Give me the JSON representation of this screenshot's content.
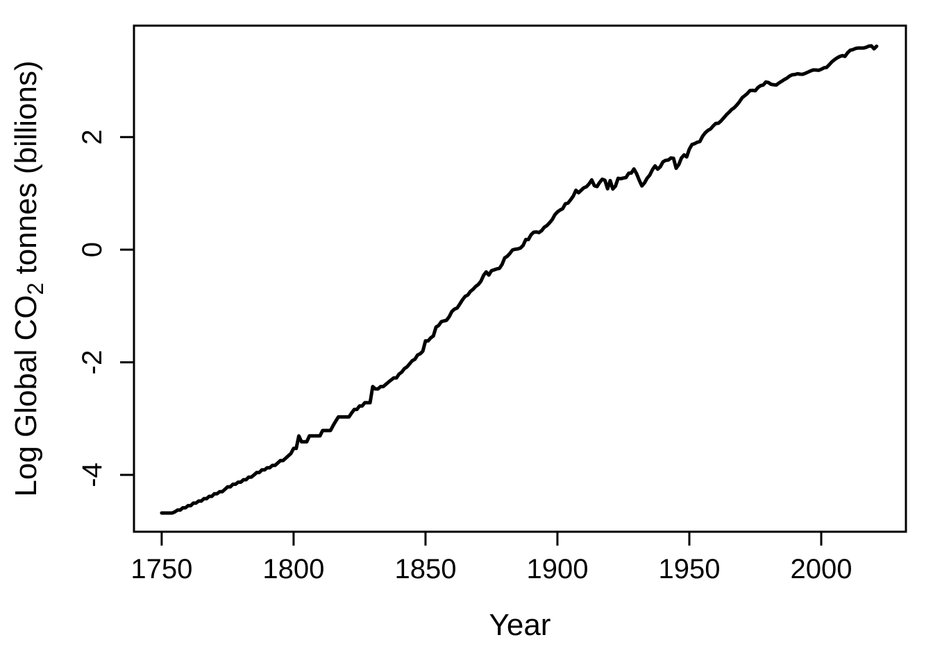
{
  "chart_data": {
    "type": "line",
    "xlabel": "Year",
    "ylabel": {
      "pre": "Log Global CO",
      "sub": "2",
      "post": " tonnes (billions)"
    },
    "x_ticks": [
      1750,
      1800,
      1850,
      1900,
      1950,
      2000
    ],
    "y_ticks": [
      -4,
      -2,
      0,
      2
    ],
    "xlim": [
      1739.5,
      2032.1
    ],
    "ylim": [
      -5.01,
      3.98
    ],
    "grid": false,
    "legend": "none",
    "line_color": "#000000",
    "axis_color": "#000000",
    "background": "#ffffff",
    "series": [
      {
        "x_start_year": 1750,
        "x_step": 1,
        "y_transform": "ln",
        "values_gtco2": [
          0.0093,
          0.0093,
          0.0093,
          0.0093,
          0.0093,
          0.0095,
          0.0098,
          0.0098,
          0.0102,
          0.0102,
          0.0106,
          0.0106,
          0.0111,
          0.0111,
          0.0115,
          0.0115,
          0.012,
          0.012,
          0.0125,
          0.0125,
          0.0131,
          0.0131,
          0.0136,
          0.0136,
          0.0142,
          0.0148,
          0.0148,
          0.0155,
          0.0155,
          0.0161,
          0.0161,
          0.0168,
          0.0168,
          0.0176,
          0.0176,
          0.0183,
          0.0191,
          0.0191,
          0.02,
          0.02,
          0.0208,
          0.0208,
          0.0217,
          0.0217,
          0.0226,
          0.0236,
          0.0236,
          0.0246,
          0.0257,
          0.0268,
          0.0293,
          0.0293,
          0.0366,
          0.033,
          0.033,
          0.033,
          0.0366,
          0.0366,
          0.0366,
          0.0366,
          0.0366,
          0.0403,
          0.0403,
          0.0403,
          0.0403,
          0.044,
          0.0476,
          0.0513,
          0.0513,
          0.0513,
          0.0513,
          0.0513,
          0.055,
          0.0586,
          0.0586,
          0.0623,
          0.0623,
          0.066,
          0.066,
          0.066,
          0.0879,
          0.0843,
          0.0843,
          0.0879,
          0.0879,
          0.0916,
          0.0953,
          0.0989,
          0.1026,
          0.1026,
          0.1099,
          0.1136,
          0.1209,
          0.1246,
          0.1319,
          0.1392,
          0.1429,
          0.1539,
          0.1575,
          0.1649,
          0.1978,
          0.1978,
          0.2088,
          0.2162,
          0.2528,
          0.2601,
          0.2784,
          0.2821,
          0.2858,
          0.3041,
          0.3334,
          0.348,
          0.3554,
          0.381,
          0.4103,
          0.436,
          0.447,
          0.4763,
          0.4946,
          0.5203,
          0.5386,
          0.5716,
          0.6339,
          0.6742,
          0.6375,
          0.6888,
          0.6998,
          0.7108,
          0.7181,
          0.7694,
          0.8647,
          0.8903,
          0.938,
          0.9966,
          1.008,
          1.015,
          1.03,
          1.081,
          1.198,
          1.198,
          1.304,
          1.363,
          1.37,
          1.356,
          1.403,
          1.488,
          1.535,
          1.612,
          1.704,
          1.858,
          1.957,
          2.023,
          2.074,
          2.261,
          2.286,
          2.429,
          2.59,
          2.873,
          2.748,
          2.876,
          3.001,
          3.063,
          3.221,
          3.455,
          3.114,
          3.07,
          3.301,
          3.499,
          3.43,
          2.953,
          3.415,
          2.942,
          3.096,
          3.554,
          3.528,
          3.572,
          3.602,
          3.891,
          3.902,
          4.195,
          3.858,
          3.444,
          3.103,
          3.272,
          3.565,
          3.763,
          4.14,
          4.43,
          4.184,
          4.368,
          4.76,
          4.888,
          4.917,
          5.097,
          5.067,
          4.25,
          4.536,
          5.1,
          5.382,
          5.199,
          5.972,
          6.474,
          6.577,
          6.745,
          6.833,
          7.486,
          7.977,
          8.317,
          8.537,
          8.991,
          9.413,
          9.453,
          9.841,
          10.38,
          10.97,
          11.47,
          12.05,
          12.43,
          13.07,
          13.85,
          14.85,
          15.42,
          16.03,
          16.91,
          16.94,
          16.84,
          17.82,
          18.42,
          18.64,
          19.67,
          19.47,
          18.88,
          18.73,
          18.66,
          19.35,
          19.93,
          20.54,
          21.08,
          21.86,
          22.34,
          22.45,
          22.78,
          22.59,
          22.58,
          22.96,
          23.44,
          23.97,
          24.37,
          24.34,
          24.22,
          24.68,
          25.27,
          25.46,
          26.7,
          28.11,
          29.21,
          30.16,
          30.92,
          31.43,
          31.0,
          33.05,
          34.62,
          34.97,
          35.67,
          35.99,
          36.0,
          35.95,
          36.38,
          37.15,
          37.38,
          35.48,
          37.12
        ]
      }
    ]
  }
}
